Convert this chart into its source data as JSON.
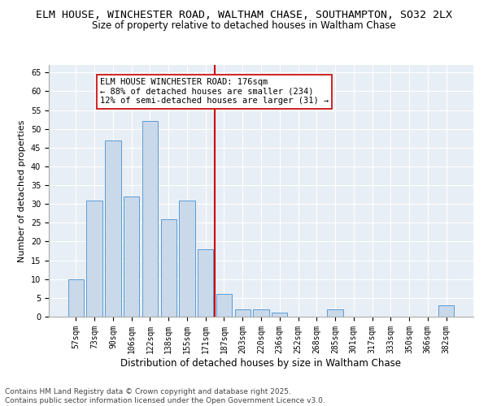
{
  "title": "ELM HOUSE, WINCHESTER ROAD, WALTHAM CHASE, SOUTHAMPTON, SO32 2LX",
  "subtitle": "Size of property relative to detached houses in Waltham Chase",
  "xlabel": "Distribution of detached houses by size in Waltham Chase",
  "ylabel": "Number of detached properties",
  "bar_color": "#c9d9ea",
  "bar_edge_color": "#5b9bd5",
  "background_color": "#e8eef5",
  "grid_color": "#ffffff",
  "categories": [
    "57sqm",
    "73sqm",
    "90sqm",
    "106sqm",
    "122sqm",
    "138sqm",
    "155sqm",
    "171sqm",
    "187sqm",
    "203sqm",
    "220sqm",
    "236sqm",
    "252sqm",
    "268sqm",
    "285sqm",
    "301sqm",
    "317sqm",
    "333sqm",
    "350sqm",
    "366sqm",
    "382sqm"
  ],
  "values": [
    10,
    31,
    47,
    32,
    52,
    26,
    31,
    18,
    6,
    2,
    2,
    1,
    0,
    0,
    2,
    0,
    0,
    0,
    0,
    0,
    3
  ],
  "vline_x": 7.5,
  "vline_color": "#cc0000",
  "annotation_text": "ELM HOUSE WINCHESTER ROAD: 176sqm\n← 88% of detached houses are smaller (234)\n12% of semi-detached houses are larger (31) →",
  "annotation_box_color": "#ffffff",
  "annotation_box_edge_color": "#cc0000",
  "ylim": [
    0,
    67
  ],
  "yticks": [
    0,
    5,
    10,
    15,
    20,
    25,
    30,
    35,
    40,
    45,
    50,
    55,
    60,
    65
  ],
  "footnote": "Contains HM Land Registry data © Crown copyright and database right 2025.\nContains public sector information licensed under the Open Government Licence v3.0.",
  "title_fontsize": 9.5,
  "subtitle_fontsize": 8.5,
  "xlabel_fontsize": 8.5,
  "ylabel_fontsize": 8,
  "tick_fontsize": 7,
  "annotation_fontsize": 7.5,
  "footnote_fontsize": 6.5
}
